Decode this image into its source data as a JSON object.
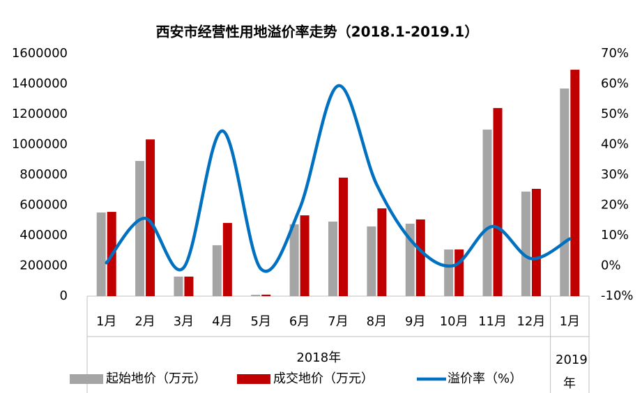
{
  "chart_data": {
    "type": "bar-line",
    "title": "西安市经营性用地溢价率走势（2018.1-2019.1）",
    "categories": [
      "1月",
      "2月",
      "3月",
      "4月",
      "5月",
      "6月",
      "7月",
      "8月",
      "9月",
      "10月",
      "11月",
      "12月",
      "1月"
    ],
    "groups": [
      {
        "label": "2018年",
        "span": 12
      },
      {
        "label": "2019年",
        "span": 1
      }
    ],
    "series": [
      {
        "name": "起始地价（万元）",
        "color": "#a5a5a5",
        "kind": "bar",
        "values": [
          552000,
          892000,
          129000,
          336000,
          9000,
          474000,
          492000,
          460000,
          478000,
          308000,
          1099000,
          690000,
          1370000
        ]
      },
      {
        "name": "成交地价（万元）",
        "color": "#c00000",
        "kind": "bar",
        "values": [
          556000,
          1034000,
          129000,
          483000,
          10000,
          533000,
          782000,
          579000,
          506000,
          308000,
          1241000,
          708000,
          1494000
        ]
      },
      {
        "name": "溢价率（%）",
        "color": "#0070c0",
        "kind": "line",
        "axis": "y2",
        "values": [
          1.0,
          15.7,
          -0.6,
          44.5,
          -1.0,
          18.7,
          59.4,
          26.8,
          6.8,
          0.1,
          13.0,
          2.4,
          8.9
        ]
      }
    ],
    "ylim": [
      0,
      1600000
    ],
    "yticks": [
      0,
      200000,
      400000,
      600000,
      800000,
      1000000,
      1200000,
      1400000,
      1600000
    ],
    "y2lim": [
      -10,
      70
    ],
    "y2ticks": [
      {
        "value": -10,
        "label": "-10%"
      },
      {
        "value": 0,
        "label": "0%"
      },
      {
        "value": 10,
        "label": "10%"
      },
      {
        "value": 20,
        "label": "20%"
      },
      {
        "value": 30,
        "label": "30%"
      },
      {
        "value": 40,
        "label": "40%"
      },
      {
        "value": 50,
        "label": "50%"
      },
      {
        "value": 60,
        "label": "60%"
      },
      {
        "value": 70,
        "label": "70%"
      }
    ],
    "legend": "bottom"
  }
}
